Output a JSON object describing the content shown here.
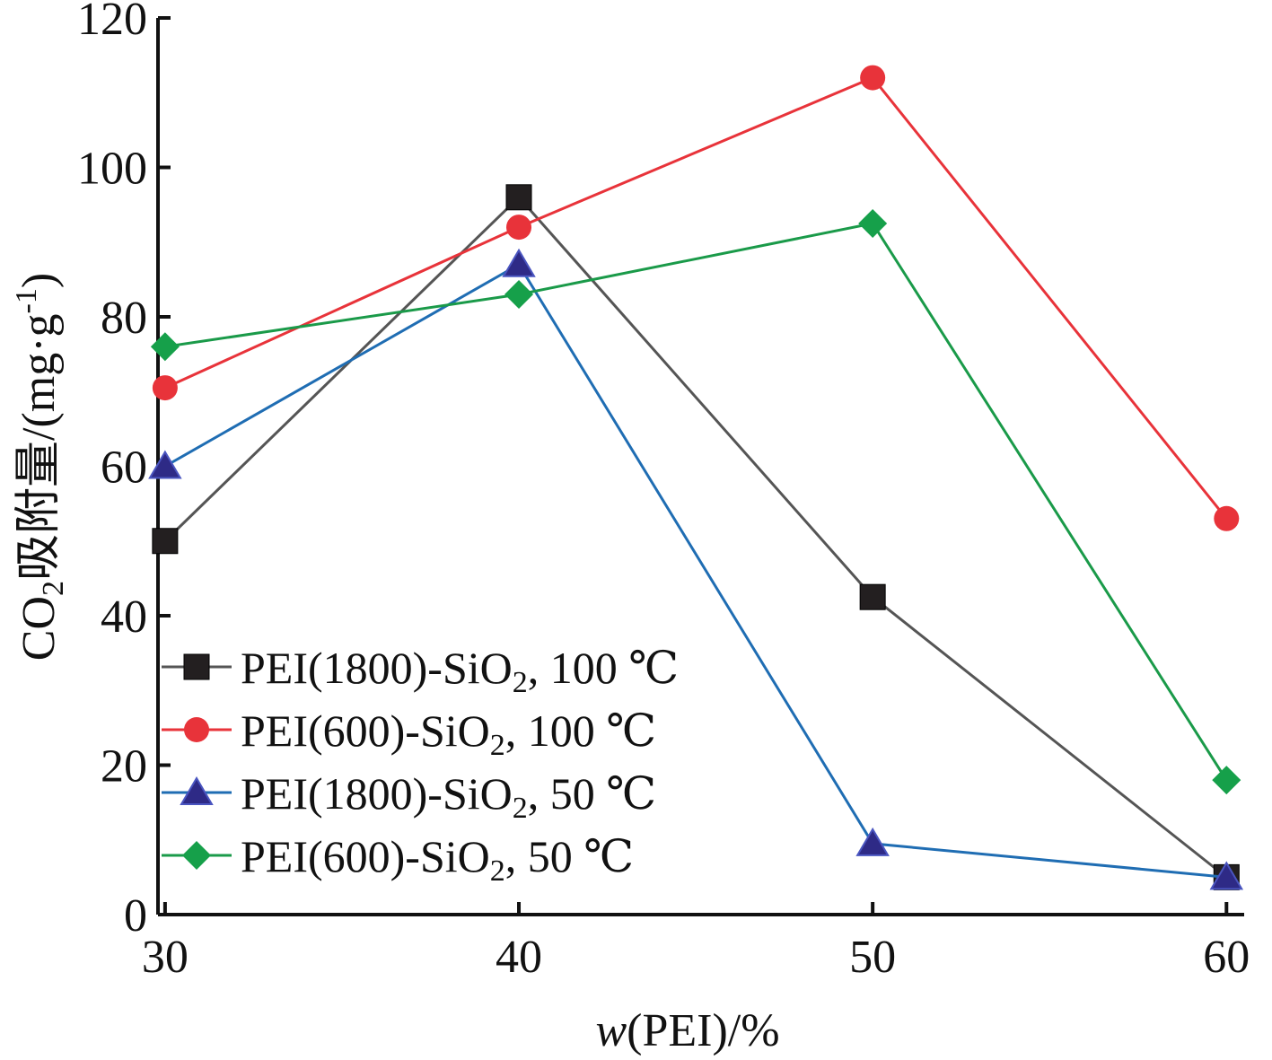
{
  "chart_data": {
    "type": "line",
    "title": "",
    "xlabel": "w(PEI)/%",
    "ylabel": "CO2吸附量/(mg·g-1)",
    "xlabel_parts": {
      "italic": "w",
      "rest": "(PEI)/%"
    },
    "ylabel_parts": {
      "pre": "CO",
      "sub": "2",
      "mid": "吸附量/(mg·g",
      "sup": "-1",
      "post": ")"
    },
    "xlim": [
      29.8,
      60.5
    ],
    "ylim": [
      0,
      120
    ],
    "xticks": [
      30,
      40,
      50,
      60
    ],
    "yticks": [
      0,
      20,
      40,
      60,
      80,
      100,
      120
    ],
    "grid": false,
    "legend_position": "bottom-left",
    "x": [
      30,
      40,
      50,
      60
    ],
    "series": [
      {
        "name": "PEI(1800)-SiO2, 100 ℃",
        "label_parts": {
          "pre": "PEI(1800)-SiO",
          "sub": "2",
          "post": ", 100 ℃"
        },
        "values": [
          50,
          96,
          42.5,
          5
        ],
        "color": "#555555",
        "marker": "square",
        "marker_color": "#231f20"
      },
      {
        "name": "PEI(600)-SiO2, 100 ℃",
        "label_parts": {
          "pre": "PEI(600)-SiO",
          "sub": "2",
          "post": ", 100 ℃"
        },
        "values": [
          70.5,
          92,
          112,
          53
        ],
        "color": "#e8333a",
        "marker": "circle",
        "marker_color": "#e8333a"
      },
      {
        "name": "PEI(1800)-SiO2, 50 ℃",
        "label_parts": {
          "pre": "PEI(1800)-SiO",
          "sub": "2",
          "post": ", 50 ℃"
        },
        "values": [
          60,
          87,
          9.5,
          5
        ],
        "color": "#1f6db3",
        "marker": "triangle",
        "marker_color": "#2e2a86"
      },
      {
        "name": "PEI(600)-SiO2, 50 ℃",
        "label_parts": {
          "pre": "PEI(600)-SiO",
          "sub": "2",
          "post": ", 50 ℃"
        },
        "values": [
          76,
          83,
          92.5,
          18
        ],
        "color": "#1a9a49",
        "marker": "diamond",
        "marker_color": "#16a04a"
      }
    ]
  }
}
